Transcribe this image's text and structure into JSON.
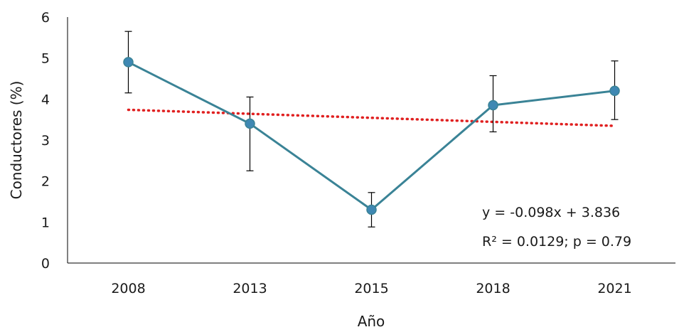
{
  "chart_data": {
    "type": "line",
    "categories": [
      "2008",
      "2013",
      "2015",
      "2018",
      "2021"
    ],
    "series": [
      {
        "values": [
          4.9,
          3.4,
          1.3,
          3.85,
          4.2
        ],
        "error_low": [
          4.15,
          2.25,
          0.88,
          3.2,
          3.5
        ],
        "error_high": [
          5.65,
          4.05,
          1.72,
          4.57,
          4.93
        ],
        "color": "#3a8396",
        "marker_color": "#3f88b3"
      }
    ],
    "trendline": {
      "slope": -0.098,
      "intercept": 3.836,
      "color": "#e02020",
      "style": "dotted"
    },
    "annotations": [
      "y = -0.098x + 3.836",
      "R² = 0.0129; p = 0.79"
    ],
    "xlabel": "Año",
    "ylabel": "Conductores (%)",
    "ylim": [
      0,
      6
    ],
    "yticks": [
      "0",
      "1",
      "2",
      "3",
      "4",
      "5",
      "6"
    ],
    "grid": false
  }
}
